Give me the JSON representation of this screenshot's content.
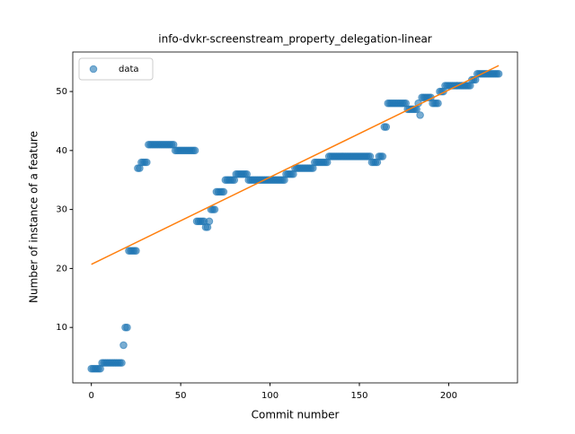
{
  "chart_data": {
    "type": "scatter",
    "title": "info-dvkr-screenstream_property_delegation-linear",
    "x_label": "Commit number",
    "y_label": "Number of instance of a feature",
    "xlim": [
      -10.4,
      238.5
    ],
    "ylim": [
      0.6,
      56.7
    ],
    "xticks": [
      0,
      50,
      100,
      150,
      200
    ],
    "yticks": [
      10,
      20,
      30,
      40,
      50
    ],
    "legend": "upper left",
    "series": [
      {
        "name": "data",
        "color": "#1f77b4",
        "x": [
          0,
          1,
          2,
          3,
          4,
          5,
          6,
          7,
          8,
          9,
          10,
          11,
          12,
          13,
          14,
          15,
          16,
          17,
          18,
          19,
          20,
          21,
          22,
          23,
          24,
          25,
          26,
          27,
          28,
          29,
          30,
          31,
          32,
          33,
          34,
          35,
          36,
          37,
          38,
          39,
          40,
          41,
          42,
          43,
          44,
          45,
          46,
          47,
          48,
          49,
          50,
          51,
          52,
          53,
          54,
          55,
          56,
          57,
          58,
          59,
          60,
          61,
          62,
          63,
          64,
          65,
          66,
          67,
          68,
          69,
          70,
          71,
          72,
          73,
          74,
          75,
          76,
          77,
          78,
          79,
          80,
          81,
          82,
          83,
          84,
          85,
          86,
          87,
          88,
          89,
          90,
          91,
          92,
          93,
          94,
          95,
          96,
          97,
          98,
          99,
          100,
          101,
          102,
          103,
          104,
          105,
          106,
          107,
          108,
          109,
          110,
          111,
          112,
          113,
          114,
          115,
          116,
          117,
          118,
          119,
          120,
          121,
          122,
          123,
          124,
          125,
          126,
          127,
          128,
          129,
          130,
          131,
          132,
          133,
          134,
          135,
          136,
          137,
          138,
          139,
          140,
          141,
          142,
          143,
          144,
          145,
          146,
          147,
          148,
          149,
          150,
          151,
          152,
          153,
          154,
          155,
          156,
          157,
          158,
          159,
          160,
          161,
          162,
          163,
          164,
          165,
          166,
          167,
          168,
          169,
          170,
          171,
          172,
          173,
          174,
          175,
          176,
          177,
          178,
          179,
          180,
          181,
          182,
          183,
          184,
          185,
          186,
          187,
          188,
          189,
          190,
          191,
          192,
          193,
          194,
          195,
          196,
          197,
          198,
          199,
          200,
          201,
          202,
          203,
          204,
          205,
          206,
          207,
          208,
          209,
          210,
          211,
          212,
          213,
          214,
          215,
          216,
          217,
          218,
          219,
          220,
          221,
          222,
          223,
          224,
          225,
          226,
          227,
          228
        ],
        "values": [
          3,
          3,
          3,
          3,
          3,
          3,
          4,
          4,
          4,
          4,
          4,
          4,
          4,
          4,
          4,
          4,
          4,
          4,
          7,
          10,
          10,
          23,
          23,
          23,
          23,
          23,
          37,
          37,
          38,
          38,
          38,
          38,
          41,
          41,
          41,
          41,
          41,
          41,
          41,
          41,
          41,
          41,
          41,
          41,
          41,
          41,
          41,
          40,
          40,
          40,
          40,
          40,
          40,
          40,
          40,
          40,
          40,
          40,
          40,
          28,
          28,
          28,
          28,
          28,
          27,
          27,
          28,
          30,
          30,
          30,
          33,
          33,
          33,
          33,
          33,
          35,
          35,
          35,
          35,
          35,
          35,
          36,
          36,
          36,
          36,
          36,
          36,
          36,
          35,
          35,
          35,
          35,
          35,
          35,
          35,
          35,
          35,
          35,
          35,
          35,
          35,
          35,
          35,
          35,
          35,
          35,
          35,
          35,
          35,
          36,
          36,
          36,
          36,
          36,
          37,
          37,
          37,
          37,
          37,
          37,
          37,
          37,
          37,
          37,
          37,
          38,
          38,
          38,
          38,
          38,
          38,
          38,
          38,
          39,
          39,
          39,
          39,
          39,
          39,
          39,
          39,
          39,
          39,
          39,
          39,
          39,
          39,
          39,
          39,
          39,
          39,
          39,
          39,
          39,
          39,
          39,
          39,
          38,
          38,
          38,
          38,
          39,
          39,
          39,
          44,
          44,
          48,
          48,
          48,
          48,
          48,
          48,
          48,
          48,
          48,
          48,
          48,
          47,
          47,
          47,
          47,
          47,
          47,
          48,
          46,
          49,
          49,
          49,
          49,
          49,
          49,
          48,
          48,
          48,
          48,
          50,
          50,
          50,
          51,
          51,
          51,
          51,
          51,
          51,
          51,
          51,
          51,
          51,
          51,
          51,
          51,
          51,
          51,
          52,
          52,
          52,
          53,
          53,
          53,
          53,
          53,
          53,
          53,
          53,
          53,
          53,
          53,
          53,
          53
        ]
      }
    ],
    "fit": {
      "color": "#ff7f0e",
      "x": [
        0,
        228
      ],
      "values": [
        20.7,
        54.4
      ]
    }
  }
}
